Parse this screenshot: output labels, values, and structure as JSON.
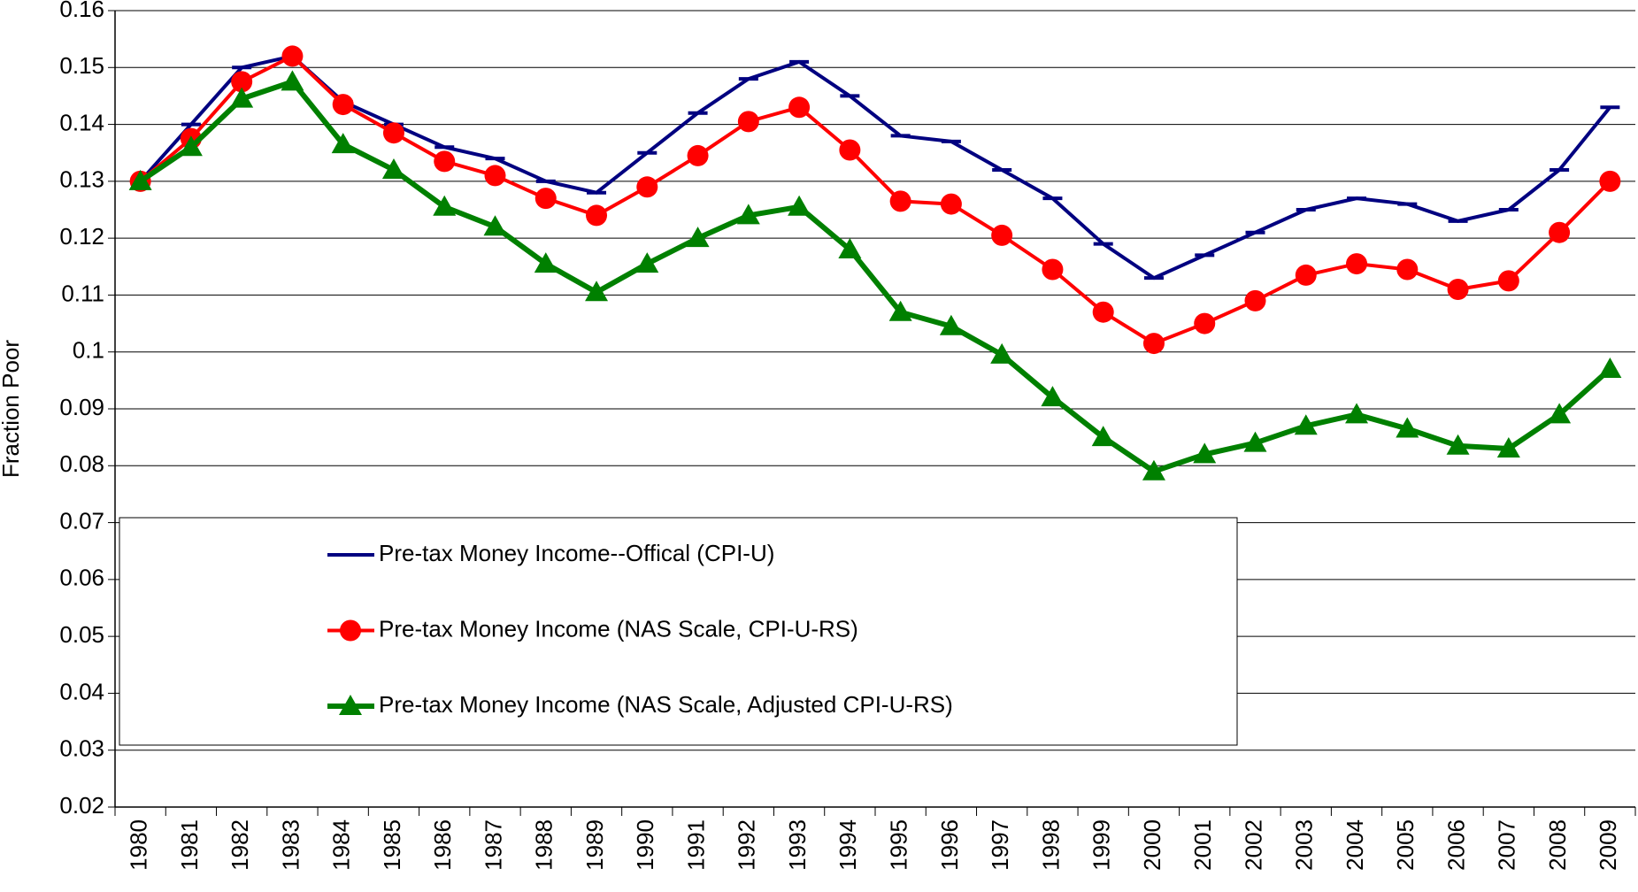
{
  "chart_data": {
    "type": "line",
    "y_label": "Fraction Poor",
    "categories": [
      "1980",
      "1981",
      "1982",
      "1983",
      "1984",
      "1985",
      "1986",
      "1987",
      "1988",
      "1989",
      "1990",
      "1991",
      "1992",
      "1993",
      "1994",
      "1995",
      "1996",
      "1997",
      "1998",
      "1999",
      "2000",
      "2001",
      "2002",
      "2003",
      "2004",
      "2005",
      "2006",
      "2007",
      "2008",
      "2009"
    ],
    "series": [
      {
        "name": "Pre-tax Money Income--Offical (CPI-U)",
        "color": "#000080",
        "marker": "dash",
        "values": [
          0.13,
          0.14,
          0.15,
          0.152,
          0.144,
          0.14,
          0.136,
          0.134,
          0.13,
          0.128,
          0.135,
          0.142,
          0.148,
          0.151,
          0.145,
          0.138,
          0.137,
          0.132,
          0.127,
          0.119,
          0.113,
          0.117,
          0.121,
          0.125,
          0.127,
          0.126,
          0.123,
          0.125,
          0.132,
          0.143
        ]
      },
      {
        "name": "Pre-tax Money Income (NAS Scale, CPI-U-RS)",
        "color": "#ff0000",
        "marker": "circle",
        "values": [
          0.13,
          0.1375,
          0.1475,
          0.152,
          0.1435,
          0.1385,
          0.1335,
          0.131,
          0.127,
          0.124,
          0.129,
          0.1345,
          0.1405,
          0.143,
          0.1355,
          0.1265,
          0.126,
          0.1205,
          0.1145,
          0.107,
          0.1015,
          0.105,
          0.109,
          0.1135,
          0.1155,
          0.1145,
          0.111,
          0.1125,
          0.121,
          0.13
        ]
      },
      {
        "name": "Pre-tax Money Income (NAS Scale, Adjusted CPI-U-RS)",
        "color": "#008000",
        "marker": "triangle",
        "values": [
          0.13,
          0.136,
          0.1445,
          0.1475,
          0.1365,
          0.132,
          0.1255,
          0.122,
          0.1155,
          0.1105,
          0.1155,
          0.12,
          0.124,
          0.1255,
          0.118,
          0.107,
          0.1045,
          0.0995,
          0.092,
          0.085,
          0.079,
          0.082,
          0.084,
          0.087,
          0.089,
          0.0865,
          0.0835,
          0.083,
          0.089,
          0.097
        ]
      }
    ],
    "ylim": [
      0.02,
      0.16
    ],
    "yticks": [
      0.02,
      0.03,
      0.04,
      0.05,
      0.06,
      0.07,
      0.08,
      0.09,
      0.1,
      0.11,
      0.12,
      0.13,
      0.14,
      0.15,
      0.16
    ],
    "grid": true
  }
}
